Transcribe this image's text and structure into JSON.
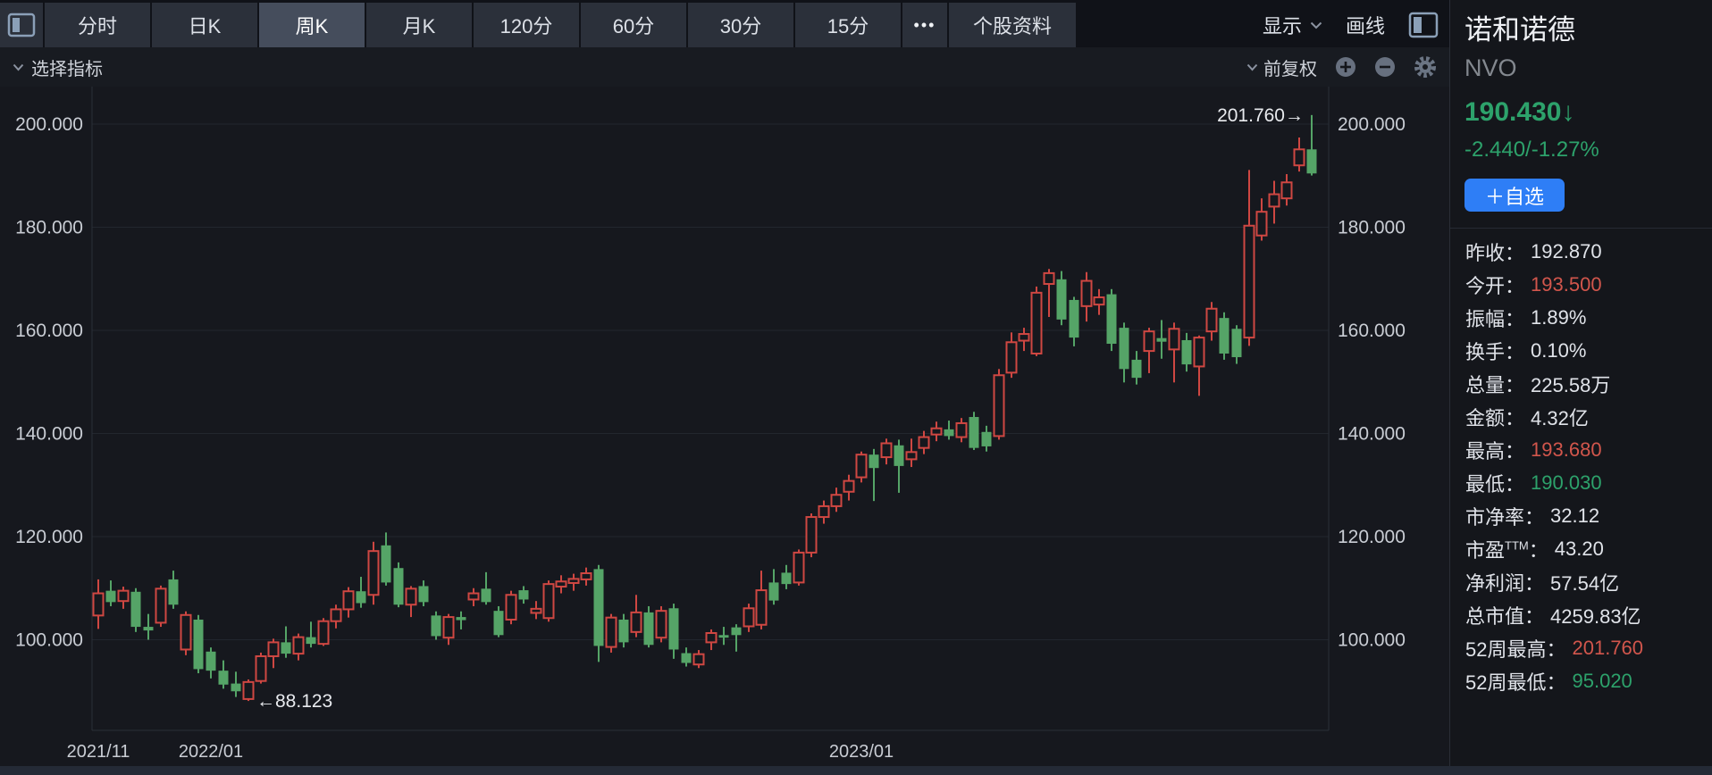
{
  "toolbar": {
    "tabs": [
      {
        "label": "分时",
        "active": false
      },
      {
        "label": "日K",
        "active": false
      },
      {
        "label": "周K",
        "active": true
      },
      {
        "label": "月K",
        "active": false
      },
      {
        "label": "120分",
        "active": false
      },
      {
        "label": "60分",
        "active": false
      },
      {
        "label": "30分",
        "active": false
      },
      {
        "label": "15分",
        "active": false
      }
    ],
    "more_label": "•••",
    "stock_info_label": "个股资料",
    "display_label": "显示",
    "draw_label": "画线"
  },
  "indicator_bar": {
    "select_indicator": "选择指标",
    "adjust_label": "前复权"
  },
  "panel": {
    "name": "诺和诺德",
    "ticker": "NVO",
    "price": "190.430↓",
    "change": "-2.440/-1.27%",
    "watchlist_button": "＋自选",
    "stats": [
      {
        "label": "昨收",
        "value": "192.870",
        "color": "white"
      },
      {
        "label": "今开",
        "value": "193.500",
        "color": "red"
      },
      {
        "label": "振幅",
        "value": "1.89%",
        "color": "white"
      },
      {
        "label": "换手",
        "value": "0.10%",
        "color": "white"
      },
      {
        "label": "总量",
        "value": "225.58万",
        "color": "white"
      },
      {
        "label": "金额",
        "value": "4.32亿",
        "color": "white"
      },
      {
        "label": "最高",
        "value": "193.680",
        "color": "red"
      },
      {
        "label": "最低",
        "value": "190.030",
        "color": "green"
      },
      {
        "label": "市净率",
        "value": "32.12",
        "color": "white"
      },
      {
        "label": "市盈",
        "sup": "TTM",
        "value": "43.20",
        "color": "white"
      },
      {
        "label": "净利润",
        "value": "57.54亿",
        "color": "white"
      },
      {
        "label": "总市值",
        "value": "4259.83亿",
        "color": "white"
      },
      {
        "label": "52周最高",
        "value": "201.760",
        "color": "red"
      },
      {
        "label": "52周最低",
        "value": "95.020",
        "color": "green"
      }
    ]
  },
  "chart_data": {
    "type": "candlestick",
    "period": "weekly",
    "title": "诺和诺德 NVO 周K",
    "y_ticks": [
      200,
      180,
      160,
      140,
      120,
      100
    ],
    "x_labels": [
      {
        "text": "2021/11",
        "index": 0
      },
      {
        "text": "2022/01",
        "index": 9
      },
      {
        "text": "2023/01",
        "index": 61
      }
    ],
    "annotations": [
      {
        "text": "←88.123",
        "index": 12,
        "price": 88.123,
        "side": "right"
      },
      {
        "text": "201.760→",
        "index": 97,
        "price": 201.76,
        "side": "left"
      }
    ],
    "colors": {
      "up": "#cf4742",
      "down": "#55a467",
      "grid": "#22262e",
      "border": "#2a2f38",
      "axis_text": "#c9cdd4",
      "annotation_text": "#e8eaee"
    },
    "candles": [
      [
        104.7,
        111.7,
        102.1,
        109.0
      ],
      [
        109.5,
        111.5,
        106.5,
        107.3
      ],
      [
        107.5,
        110.3,
        106.0,
        109.5
      ],
      [
        109.3,
        110.0,
        101.5,
        102.5
      ],
      [
        102.5,
        105.0,
        100.0,
        101.8
      ],
      [
        103.3,
        110.5,
        102.5,
        109.9
      ],
      [
        111.7,
        113.4,
        106.0,
        106.8
      ],
      [
        98.1,
        105.5,
        97.0,
        104.8
      ],
      [
        103.9,
        104.8,
        93.5,
        94.3
      ],
      [
        97.7,
        98.5,
        92.5,
        94.0
      ],
      [
        94.0,
        96.0,
        90.5,
        91.3
      ],
      [
        91.5,
        93.8,
        88.9,
        90.0
      ],
      [
        88.5,
        92.3,
        88.123,
        91.8
      ],
      [
        92.0,
        97.5,
        91.5,
        96.8
      ],
      [
        96.8,
        100.2,
        94.5,
        99.5
      ],
      [
        99.5,
        102.6,
        96.5,
        97.3
      ],
      [
        97.3,
        101.2,
        96.0,
        100.5
      ],
      [
        100.5,
        103.5,
        98.5,
        99.2
      ],
      [
        99.2,
        104.2,
        98.8,
        103.6
      ],
      [
        103.6,
        106.8,
        102.2,
        105.9
      ],
      [
        105.9,
        110.2,
        104.3,
        109.4
      ],
      [
        109.4,
        112.2,
        106.2,
        107.1
      ],
      [
        108.7,
        119.0,
        106.8,
        117.2
      ],
      [
        118.3,
        120.8,
        110.5,
        111.1
      ],
      [
        113.9,
        115.0,
        106.3,
        106.8
      ],
      [
        106.8,
        110.4,
        104.4,
        109.9
      ],
      [
        110.4,
        111.5,
        106.5,
        107.3
      ],
      [
        104.7,
        105.5,
        100.0,
        100.7
      ],
      [
        100.4,
        105.0,
        99.0,
        104.4
      ],
      [
        104.4,
        105.5,
        102.0,
        103.8
      ],
      [
        107.8,
        110.0,
        106.5,
        109.0
      ],
      [
        109.9,
        113.1,
        106.8,
        107.3
      ],
      [
        105.6,
        106.5,
        100.5,
        100.9
      ],
      [
        103.9,
        109.5,
        103.0,
        108.7
      ],
      [
        109.6,
        110.4,
        107.0,
        107.8
      ],
      [
        105.2,
        107.5,
        104.0,
        106.0
      ],
      [
        104.2,
        111.5,
        103.5,
        110.8
      ],
      [
        110.3,
        112.5,
        109.0,
        111.3
      ],
      [
        111.0,
        112.8,
        109.5,
        111.8
      ],
      [
        111.7,
        114.0,
        110.5,
        112.9
      ],
      [
        113.7,
        114.5,
        95.7,
        98.8
      ],
      [
        98.6,
        105.0,
        97.5,
        104.3
      ],
      [
        103.9,
        105.0,
        98.5,
        99.5
      ],
      [
        101.5,
        108.7,
        100.5,
        105.3
      ],
      [
        105.3,
        106.5,
        98.5,
        99.0
      ],
      [
        100.4,
        106.5,
        99.5,
        105.6
      ],
      [
        106.1,
        107.0,
        96.3,
        98.1
      ],
      [
        97.4,
        98.5,
        94.8,
        95.5
      ],
      [
        95.2,
        98.0,
        94.5,
        97.2
      ],
      [
        99.5,
        102.0,
        98.0,
        101.3
      ],
      [
        100.9,
        102.5,
        99.0,
        100.4
      ],
      [
        102.4,
        103.0,
        97.7,
        100.9
      ],
      [
        102.6,
        107.0,
        101.5,
        106.1
      ],
      [
        102.9,
        113.4,
        102.0,
        109.6
      ],
      [
        111.1,
        113.7,
        106.8,
        107.6
      ],
      [
        113.0,
        114.5,
        109.8,
        110.8
      ],
      [
        111.1,
        117.5,
        110.5,
        116.9
      ],
      [
        116.9,
        124.5,
        116.0,
        123.8
      ],
      [
        123.8,
        127.0,
        122.5,
        125.9
      ],
      [
        125.9,
        129.5,
        124.8,
        128.1
      ],
      [
        128.7,
        132.0,
        127.0,
        130.8
      ],
      [
        131.5,
        136.5,
        130.5,
        135.9
      ],
      [
        135.9,
        137.0,
        126.9,
        133.3
      ],
      [
        135.4,
        139.0,
        134.0,
        138.1
      ],
      [
        137.7,
        138.8,
        128.5,
        133.7
      ],
      [
        135.0,
        139.0,
        133.5,
        136.4
      ],
      [
        137.2,
        140.5,
        136.0,
        139.3
      ],
      [
        139.8,
        142.3,
        138.5,
        141.0
      ],
      [
        140.8,
        142.5,
        138.8,
        139.5
      ],
      [
        139.3,
        143.0,
        138.3,
        142.0
      ],
      [
        143.2,
        144.2,
        136.8,
        137.2
      ],
      [
        140.3,
        141.5,
        136.5,
        137.5
      ],
      [
        139.5,
        152.5,
        138.8,
        151.3
      ],
      [
        151.8,
        159.6,
        150.8,
        157.7
      ],
      [
        158.0,
        160.5,
        156.0,
        159.3
      ],
      [
        155.5,
        168.5,
        155.0,
        167.3
      ],
      [
        169.0,
        171.9,
        162.6,
        171.1
      ],
      [
        169.9,
        171.5,
        161.0,
        162.1
      ],
      [
        165.9,
        166.5,
        156.9,
        158.6
      ],
      [
        164.7,
        171.3,
        161.7,
        169.6
      ],
      [
        165.0,
        168.0,
        163.0,
        166.4
      ],
      [
        167.0,
        168.0,
        156.0,
        157.4
      ],
      [
        160.5,
        161.5,
        149.9,
        152.5
      ],
      [
        154.3,
        156.0,
        149.5,
        150.8
      ],
      [
        156.0,
        160.5,
        151.7,
        159.8
      ],
      [
        158.5,
        162.0,
        154.5,
        157.8
      ],
      [
        156.3,
        161.5,
        149.9,
        160.3
      ],
      [
        158.1,
        159.5,
        152.0,
        153.4
      ],
      [
        153.0,
        159.0,
        147.3,
        158.6
      ],
      [
        159.8,
        165.5,
        158.0,
        164.2
      ],
      [
        162.4,
        163.5,
        154.3,
        155.5
      ],
      [
        160.3,
        161.0,
        153.5,
        154.8
      ],
      [
        158.6,
        191.1,
        157.0,
        180.3
      ],
      [
        178.4,
        185.6,
        177.4,
        183.0
      ],
      [
        184.0,
        189.0,
        180.7,
        186.4
      ],
      [
        185.6,
        190.3,
        184.2,
        188.7
      ],
      [
        192.0,
        197.4,
        190.8,
        195.1
      ],
      [
        195.1,
        201.76,
        190.03,
        190.43
      ]
    ]
  }
}
